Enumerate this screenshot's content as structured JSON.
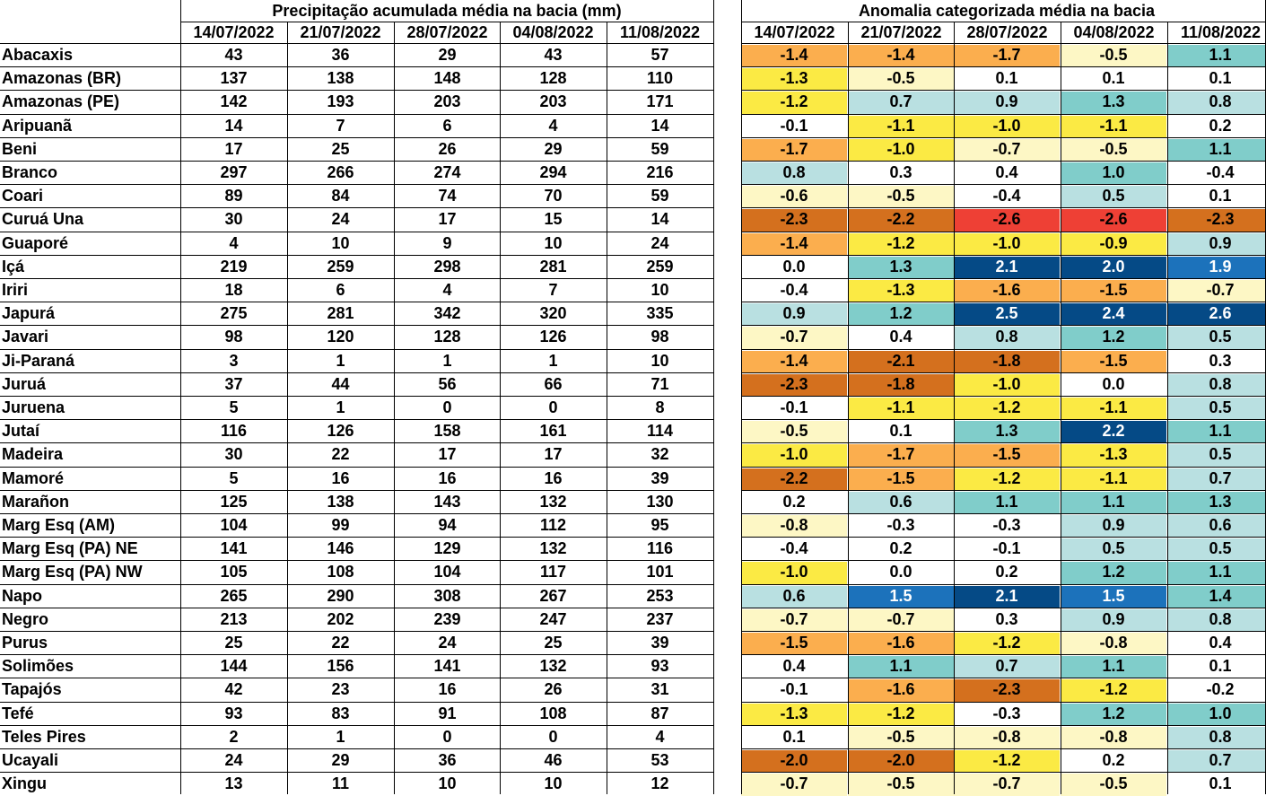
{
  "precip_title": "Precipitação acumulada média na bacia (mm)",
  "anom_title": "Anomalia categorizada média na bacia",
  "dates": [
    "14/07/2022",
    "21/07/2022",
    "28/07/2022",
    "04/08/2022",
    "11/08/2022"
  ],
  "rows": [
    {
      "name": "Abacaxis",
      "precip": [
        "43",
        "36",
        "29",
        "43",
        "57"
      ],
      "anom": [
        "-1.4",
        "-1.4",
        "-1.7",
        "-0.5",
        "1.1"
      ]
    },
    {
      "name": "Amazonas (BR)",
      "precip": [
        "137",
        "138",
        "148",
        "128",
        "110"
      ],
      "anom": [
        "-1.3",
        "-0.5",
        "0.1",
        "0.1",
        "0.1"
      ]
    },
    {
      "name": "Amazonas (PE)",
      "precip": [
        "142",
        "193",
        "203",
        "203",
        "171"
      ],
      "anom": [
        "-1.2",
        "0.7",
        "0.9",
        "1.3",
        "0.8"
      ]
    },
    {
      "name": "Aripuanã",
      "precip": [
        "14",
        "7",
        "6",
        "4",
        "14"
      ],
      "anom": [
        "-0.1",
        "-1.1",
        "-1.0",
        "-1.1",
        "0.2"
      ]
    },
    {
      "name": "Beni",
      "precip": [
        "17",
        "25",
        "26",
        "29",
        "59"
      ],
      "anom": [
        "-1.7",
        "-1.0",
        "-0.7",
        "-0.5",
        "1.1"
      ]
    },
    {
      "name": "Branco",
      "precip": [
        "297",
        "266",
        "274",
        "294",
        "216"
      ],
      "anom": [
        "0.8",
        "0.3",
        "0.4",
        "1.0",
        "-0.4"
      ]
    },
    {
      "name": "Coari",
      "precip": [
        "89",
        "84",
        "74",
        "70",
        "59"
      ],
      "anom": [
        "-0.6",
        "-0.5",
        "-0.4",
        "0.5",
        "0.1"
      ]
    },
    {
      "name": "Curuá Una",
      "precip": [
        "30",
        "24",
        "17",
        "15",
        "14"
      ],
      "anom": [
        "-2.3",
        "-2.2",
        "-2.6",
        "-2.6",
        "-2.3"
      ]
    },
    {
      "name": "Guaporé",
      "precip": [
        "4",
        "10",
        "9",
        "10",
        "24"
      ],
      "anom": [
        "-1.4",
        "-1.2",
        "-1.0",
        "-0.9",
        "0.9"
      ]
    },
    {
      "name": "Içá",
      "precip": [
        "219",
        "259",
        "298",
        "281",
        "259"
      ],
      "anom": [
        "0.0",
        "1.3",
        "2.1",
        "2.0",
        "1.9"
      ]
    },
    {
      "name": "Iriri",
      "precip": [
        "18",
        "6",
        "4",
        "7",
        "10"
      ],
      "anom": [
        "-0.4",
        "-1.3",
        "-1.6",
        "-1.5",
        "-0.7"
      ]
    },
    {
      "name": "Japurá",
      "precip": [
        "275",
        "281",
        "342",
        "320",
        "335"
      ],
      "anom": [
        "0.9",
        "1.2",
        "2.5",
        "2.4",
        "2.6"
      ]
    },
    {
      "name": "Javari",
      "precip": [
        "98",
        "120",
        "128",
        "126",
        "98"
      ],
      "anom": [
        "-0.7",
        "0.4",
        "0.8",
        "1.2",
        "0.5"
      ]
    },
    {
      "name": "Ji-Paraná",
      "precip": [
        "3",
        "1",
        "1",
        "1",
        "10"
      ],
      "anom": [
        "-1.4",
        "-2.1",
        "-1.8",
        "-1.5",
        "0.3"
      ]
    },
    {
      "name": "Juruá",
      "precip": [
        "37",
        "44",
        "56",
        "66",
        "71"
      ],
      "anom": [
        "-2.3",
        "-1.8",
        "-1.0",
        "0.0",
        "0.8"
      ]
    },
    {
      "name": "Juruena",
      "precip": [
        "5",
        "1",
        "0",
        "0",
        "8"
      ],
      "anom": [
        "-0.1",
        "-1.1",
        "-1.2",
        "-1.1",
        "0.5"
      ]
    },
    {
      "name": "Jutaí",
      "precip": [
        "116",
        "126",
        "158",
        "161",
        "114"
      ],
      "anom": [
        "-0.5",
        "0.1",
        "1.3",
        "2.2",
        "1.1"
      ]
    },
    {
      "name": "Madeira",
      "precip": [
        "30",
        "22",
        "17",
        "17",
        "32"
      ],
      "anom": [
        "-1.0",
        "-1.7",
        "-1.5",
        "-1.3",
        "0.5"
      ]
    },
    {
      "name": "Mamoré",
      "precip": [
        "5",
        "16",
        "16",
        "16",
        "39"
      ],
      "anom": [
        "-2.2",
        "-1.5",
        "-1.2",
        "-1.1",
        "0.7"
      ]
    },
    {
      "name": "Marañon",
      "precip": [
        "125",
        "138",
        "143",
        "132",
        "130"
      ],
      "anom": [
        "0.2",
        "0.6",
        "1.1",
        "1.1",
        "1.3"
      ]
    },
    {
      "name": "Marg Esq (AM)",
      "precip": [
        "104",
        "99",
        "94",
        "112",
        "95"
      ],
      "anom": [
        "-0.8",
        "-0.3",
        "-0.3",
        "0.9",
        "0.6"
      ]
    },
    {
      "name": "Marg Esq (PA) NE",
      "precip": [
        "141",
        "146",
        "129",
        "132",
        "116"
      ],
      "anom": [
        "-0.4",
        "0.2",
        "-0.1",
        "0.5",
        "0.5"
      ]
    },
    {
      "name": "Marg Esq (PA) NW",
      "precip": [
        "105",
        "108",
        "104",
        "117",
        "101"
      ],
      "anom": [
        "-1.0",
        "0.0",
        "0.2",
        "1.2",
        "1.1"
      ]
    },
    {
      "name": "Napo",
      "precip": [
        "265",
        "290",
        "308",
        "267",
        "253"
      ],
      "anom": [
        "0.6",
        "1.5",
        "2.1",
        "1.5",
        "1.4"
      ]
    },
    {
      "name": "Negro",
      "precip": [
        "213",
        "202",
        "239",
        "247",
        "237"
      ],
      "anom": [
        "-0.7",
        "-0.7",
        "0.3",
        "0.9",
        "0.8"
      ]
    },
    {
      "name": "Purus",
      "precip": [
        "25",
        "22",
        "24",
        "25",
        "39"
      ],
      "anom": [
        "-1.5",
        "-1.6",
        "-1.2",
        "-0.8",
        "0.4"
      ]
    },
    {
      "name": "Solimões",
      "precip": [
        "144",
        "156",
        "141",
        "132",
        "93"
      ],
      "anom": [
        "0.4",
        "1.1",
        "0.7",
        "1.1",
        "0.1"
      ]
    },
    {
      "name": "Tapajós",
      "precip": [
        "42",
        "23",
        "16",
        "26",
        "31"
      ],
      "anom": [
        "-0.1",
        "-1.6",
        "-2.3",
        "-1.2",
        "-0.2"
      ]
    },
    {
      "name": "Tefé",
      "precip": [
        "93",
        "83",
        "91",
        "108",
        "87"
      ],
      "anom": [
        "-1.3",
        "-1.2",
        "-0.3",
        "1.2",
        "1.0"
      ]
    },
    {
      "name": "Teles Pires",
      "precip": [
        "2",
        "1",
        "0",
        "0",
        "4"
      ],
      "anom": [
        "0.1",
        "-0.5",
        "-0.8",
        "-0.8",
        "0.8"
      ]
    },
    {
      "name": "Ucayali",
      "precip": [
        "24",
        "29",
        "36",
        "46",
        "53"
      ],
      "anom": [
        "-2.0",
        "-2.0",
        "-1.2",
        "0.2",
        "0.7"
      ]
    },
    {
      "name": "Xingu",
      "precip": [
        "13",
        "11",
        "10",
        "10",
        "12"
      ],
      "anom": [
        "-0.7",
        "-0.5",
        "-0.7",
        "-0.5",
        "0.1"
      ]
    }
  ],
  "colors": {
    "red": "#ee4035",
    "dark_orange": "#d4701e",
    "orange": "#fbae4e",
    "yellow": "#fbea44",
    "light_yellow": "#fdf7c5",
    "white": "#ffffff",
    "light_teal": "#b9e0e1",
    "teal": "#80cdca",
    "blue": "#1c72bb",
    "dark_blue": "#054a86"
  }
}
